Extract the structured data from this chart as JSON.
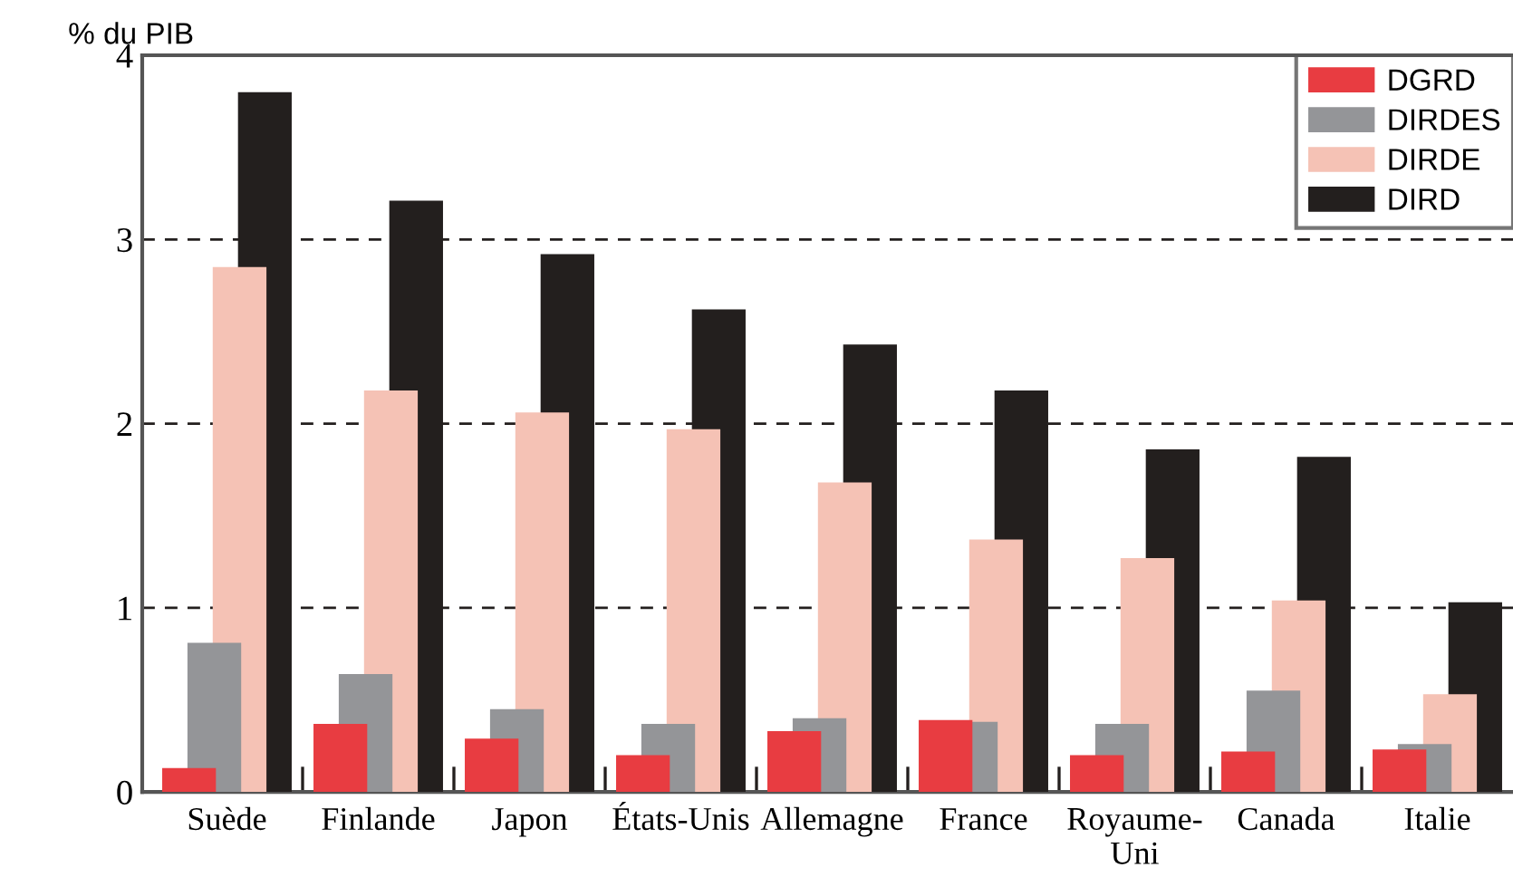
{
  "chart_data": {
    "type": "bar",
    "ylabel": "% du PIB",
    "categories": [
      "Suède",
      "Finlande",
      "Japon",
      "États-Unis",
      "Allemagne",
      "France",
      "Royaume-\nUni",
      "Canada",
      "Italie"
    ],
    "series": [
      {
        "name": "DGRD",
        "color": "#e83c41",
        "values": [
          0.13,
          0.37,
          0.29,
          0.2,
          0.33,
          0.39,
          0.2,
          0.22,
          0.23
        ]
      },
      {
        "name": "DIRDES",
        "color": "#949598",
        "values": [
          0.81,
          0.64,
          0.45,
          0.37,
          0.4,
          0.38,
          0.37,
          0.55,
          0.26
        ]
      },
      {
        "name": "DIRDE",
        "color": "#f5c2b5",
        "values": [
          2.85,
          2.18,
          2.06,
          1.97,
          1.68,
          1.37,
          1.27,
          1.04,
          0.53
        ]
      },
      {
        "name": "DIRD",
        "color": "#231f1e",
        "values": [
          3.8,
          3.21,
          2.92,
          2.62,
          2.43,
          2.18,
          1.86,
          1.82,
          1.03
        ]
      }
    ],
    "ylim": [
      0,
      4
    ],
    "yticks": [
      0,
      1,
      2,
      3,
      4
    ],
    "grid": "y",
    "legend": "top right"
  }
}
